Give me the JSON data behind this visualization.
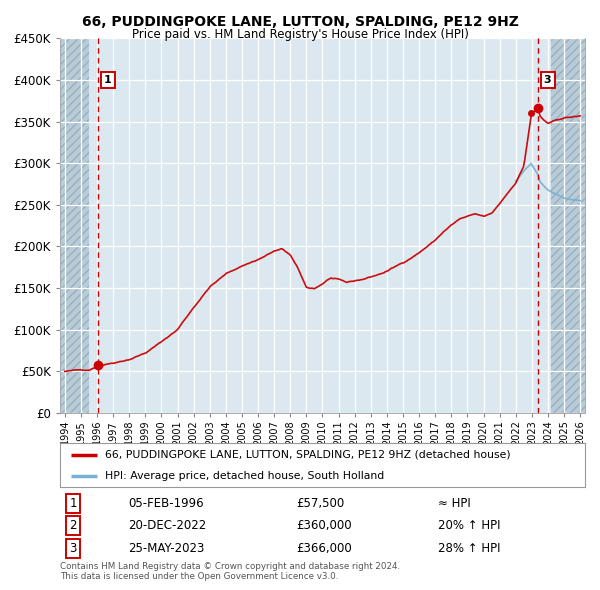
{
  "title": "66, PUDDINGPOKE LANE, LUTTON, SPALDING, PE12 9HZ",
  "subtitle": "Price paid vs. HM Land Registry's House Price Index (HPI)",
  "legend_line1": "66, PUDDINGPOKE LANE, LUTTON, SPALDING, PE12 9HZ (detached house)",
  "legend_line2": "HPI: Average price, detached house, South Holland",
  "table": [
    {
      "num": "1",
      "date": "05-FEB-1996",
      "price": "£57,500",
      "rel": "≈ HPI"
    },
    {
      "num": "2",
      "date": "20-DEC-2022",
      "price": "£360,000",
      "rel": "20% ↑ HPI"
    },
    {
      "num": "3",
      "date": "25-MAY-2023",
      "price": "£366,000",
      "rel": "28% ↑ HPI"
    }
  ],
  "footer1": "Contains HM Land Registry data © Crown copyright and database right 2024.",
  "footer2": "This data is licensed under the Open Government Licence v3.0.",
  "sale1_year": 1996.09,
  "sale1_price": 57500,
  "sale2_year": 2022.97,
  "sale2_price": 360000,
  "sale3_year": 2023.39,
  "sale3_price": 366000,
  "vline1_year": 1996.09,
  "vline3_year": 2023.39,
  "ylim": [
    0,
    450000
  ],
  "xlim_start": 1993.7,
  "xlim_end": 2026.3,
  "hatch_left_end": 1995.5,
  "hatch_right_start": 2024.2,
  "plot_bg_color": "#dce8f0",
  "hatch_color": "#b8ccd8",
  "grid_color": "#ffffff",
  "line_color_red": "#cc0000",
  "line_color_blue": "#7ab0d4",
  "vline_color": "#cc0000",
  "marker_color": "#cc0000",
  "box_outline": "#cc0000",
  "title_color": "#000000"
}
